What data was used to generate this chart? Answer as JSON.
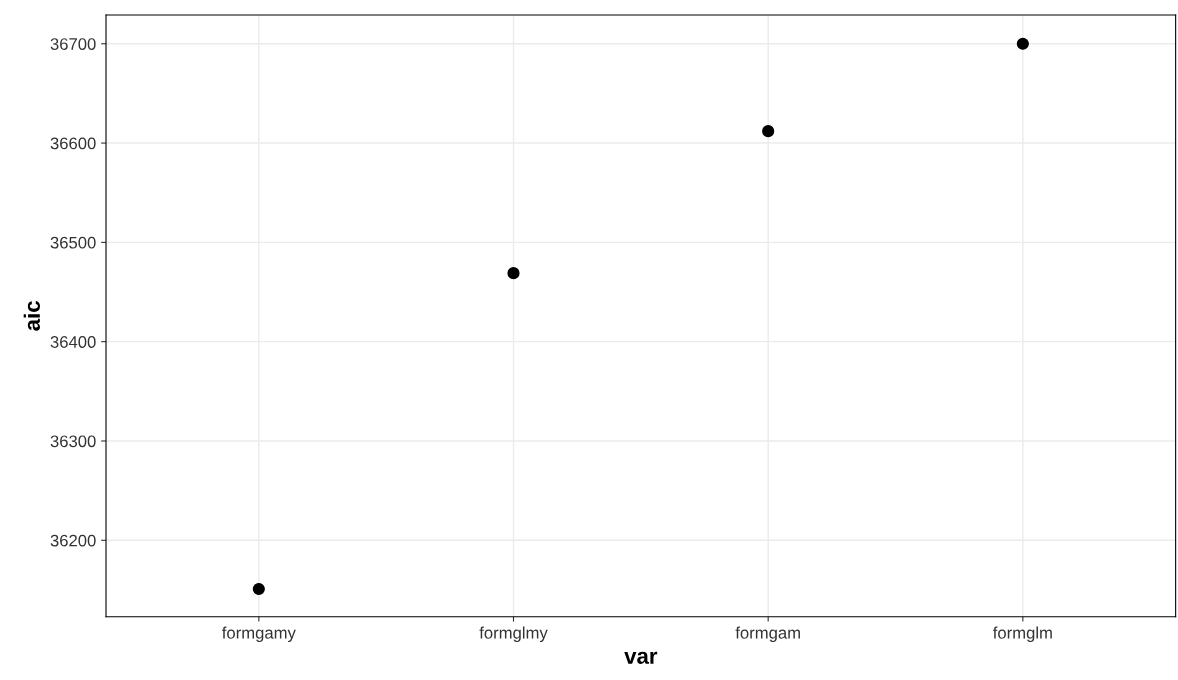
{
  "chart_data": {
    "type": "scatter",
    "xlabel": "var",
    "ylabel": "aic",
    "categories": [
      "formgamy",
      "formglmy",
      "formgam",
      "formglm"
    ],
    "values": [
      36151,
      36469,
      36612,
      36700
    ],
    "color": "#000000",
    "marker": "circle",
    "ylim": [
      36123,
      36729
    ],
    "yticks": [
      36200,
      36300,
      36400,
      36500,
      36600,
      36700
    ],
    "grid": true,
    "legend": false
  }
}
